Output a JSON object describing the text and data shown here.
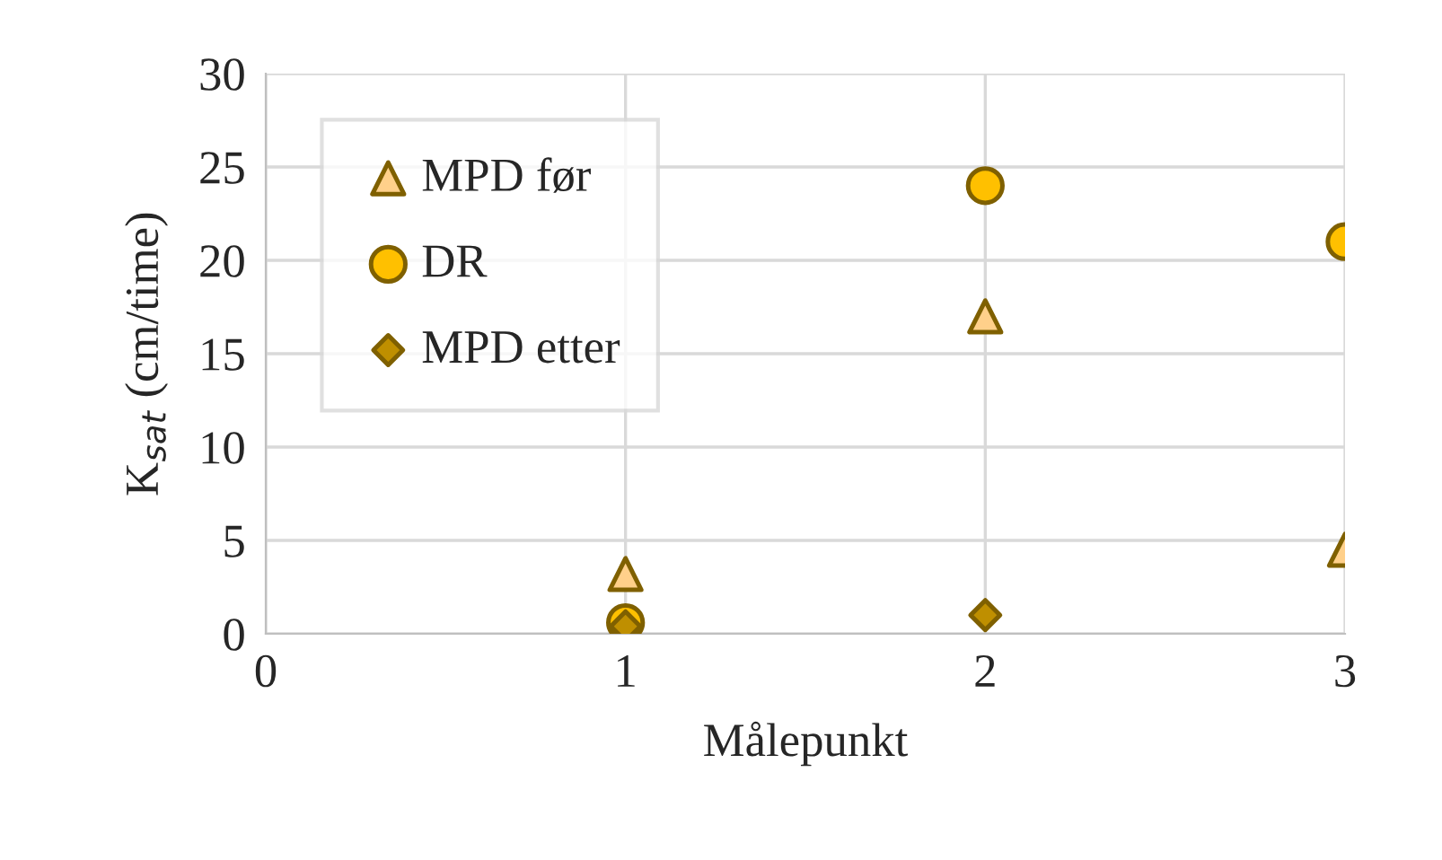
{
  "chart_data": {
    "type": "scatter",
    "xlabel": "Målepunkt",
    "ylabel": "K$_{sat}$ (cm/time)",
    "xlim": [
      0,
      3
    ],
    "xticks": [
      0,
      1,
      2,
      3
    ],
    "ylim": [
      0,
      30
    ],
    "yticks": [
      0,
      5,
      10,
      15,
      20,
      25,
      30
    ],
    "grid": true,
    "legend": "top left",
    "series": [
      {
        "name": "MPD før",
        "color": "#ffd08a",
        "marker": "triangle",
        "x": [
          1,
          2,
          3
        ],
        "values": [
          3.2,
          17,
          4.5
        ]
      },
      {
        "name": "DR",
        "color": "#ffc000",
        "marker": "circle",
        "x": [
          1,
          2,
          3
        ],
        "values": [
          0.6,
          24,
          21
        ]
      },
      {
        "name": "MPD etter",
        "color": "#bf8f00",
        "marker": "diamond",
        "x": [
          1,
          2
        ],
        "values": [
          0.4,
          1.0
        ]
      }
    ]
  }
}
